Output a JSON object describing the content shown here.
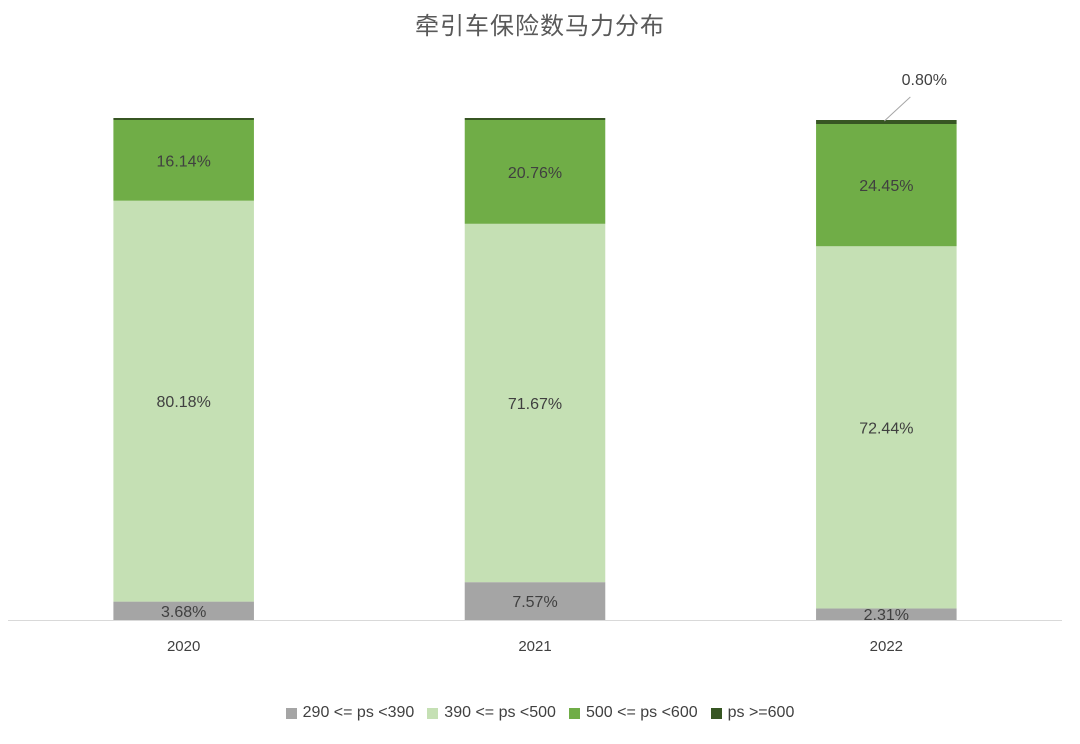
{
  "chart_data": {
    "type": "bar",
    "stacked": true,
    "title": "牵引车保险数马力分布",
    "categories": [
      "2020",
      "2021",
      "2022"
    ],
    "ylim": [
      0,
      100
    ],
    "grid": false,
    "legend": "bottom",
    "series": [
      {
        "name": "290 <= ps <390",
        "color": "#a5a5a5",
        "values": [
          3.68,
          7.57,
          2.31
        ],
        "labels": [
          "3.68%",
          "7.57%",
          "2.31%"
        ]
      },
      {
        "name": "390 <= ps <500",
        "color": "#c5e0b4",
        "values": [
          80.18,
          71.67,
          72.44
        ],
        "labels": [
          "80.18%",
          "71.67%",
          "72.44%"
        ]
      },
      {
        "name": "500 <= ps <600",
        "color": "#70ad47",
        "values": [
          16.14,
          20.76,
          24.45
        ],
        "labels": [
          "16.14%",
          "20.76%",
          "24.45%"
        ]
      },
      {
        "name": "ps >=600",
        "color": "#375623",
        "values": [
          0,
          0,
          0.8
        ],
        "labels": [
          null,
          null,
          "0.80%"
        ]
      }
    ]
  }
}
